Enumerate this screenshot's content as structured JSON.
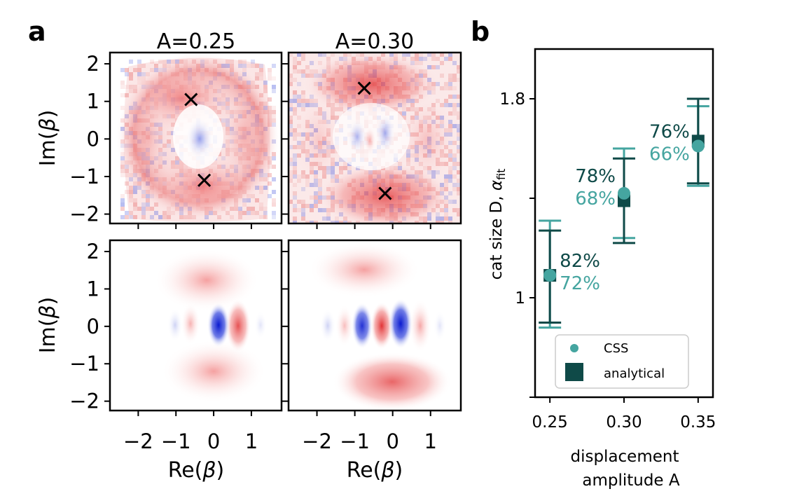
{
  "figure": {
    "panel_a_letter": "a",
    "panel_b_letter": "b"
  },
  "panel_a": {
    "col_titles": [
      "A=0.25",
      "A=0.30"
    ],
    "ylabel": "Im(β)",
    "xlabel": "Re(β)",
    "y_ticks": [
      "2",
      "1",
      "0",
      "−1",
      "−2"
    ],
    "x_ticks": [
      "−2",
      "−1",
      "0",
      "1"
    ],
    "colormap": {
      "positive": "#e0282a",
      "negative": "#2a36c8",
      "zero": "#ffffff"
    },
    "markers": [
      {
        "panel": "A=0.25",
        "points": [
          [
            -0.6,
            1.05
          ],
          [
            -0.25,
            -1.1
          ]
        ]
      },
      {
        "panel": "A=0.30",
        "points": [
          [
            -0.75,
            1.35
          ],
          [
            -0.2,
            -1.45
          ]
        ]
      }
    ]
  },
  "chart_data": {
    "type": "scatter",
    "title": "",
    "xlabel": "displacement amplitude A",
    "xlabel_lines": [
      "displacement",
      "amplitude A"
    ],
    "ylabel": "cat size D, α_fit",
    "ylabel_main": "cat size D, ",
    "ylabel_alpha": "α",
    "ylabel_sub": "fit",
    "x_ticks": [
      "0.25",
      "0.30",
      "0.35"
    ],
    "y_ticks": [
      "1.8",
      "1"
    ],
    "xlim": [
      0.24,
      0.36
    ],
    "ylim": [
      0.6,
      2.0
    ],
    "series": [
      {
        "name": "CSS",
        "color": "#45a5a0",
        "marker": "circle",
        "x": [
          0.25,
          0.3,
          0.35
        ],
        "y": [
          1.09,
          1.42,
          1.61
        ],
        "yerr_low": [
          0.88,
          1.24,
          1.45
        ],
        "yerr_high": [
          1.31,
          1.6,
          1.77
        ],
        "labels": [
          "72%",
          "68%",
          "66%"
        ]
      },
      {
        "name": "analytical",
        "color": "#0f4a48",
        "marker": "square",
        "x": [
          0.25,
          0.3,
          0.35
        ],
        "y": [
          1.09,
          1.39,
          1.63
        ],
        "yerr_low": [
          0.9,
          1.22,
          1.46
        ],
        "yerr_high": [
          1.27,
          1.56,
          1.8
        ],
        "labels": [
          "82%",
          "78%",
          "76%"
        ]
      }
    ],
    "legend": {
      "placement": "lower-right",
      "entries": [
        "CSS",
        "analytical"
      ]
    }
  }
}
